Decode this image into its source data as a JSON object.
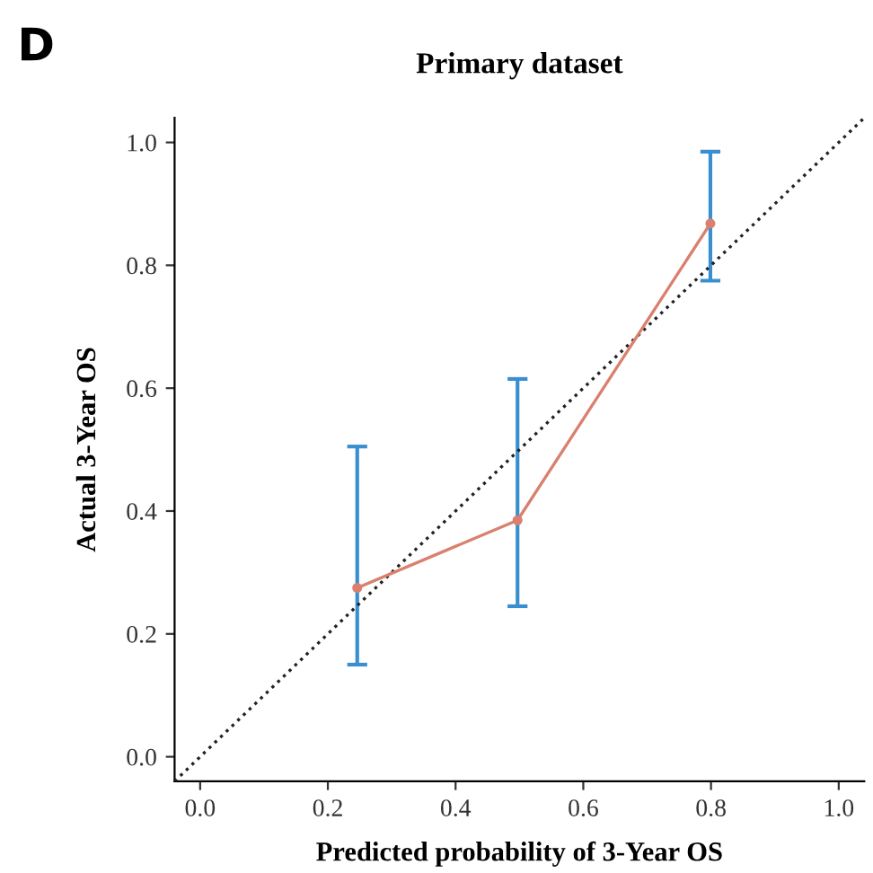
{
  "chart_data": {
    "type": "line",
    "title": "Primary dataset",
    "xlabel": "Predicted probability of 3-Year OS",
    "ylabel": "Actual 3-Year OS",
    "annotations": [
      "D"
    ],
    "series": [
      {
        "x": [
          -0.04,
          1.04
        ],
        "values": [
          -0.04,
          1.04
        ],
        "color": "#222222",
        "line_style": "dotted",
        "marker": "none"
      },
      {
        "x": [
          0.246,
          0.497,
          0.799
        ],
        "values": [
          0.275,
          0.385,
          0.868
        ],
        "errors": [
          [
            0.15,
            0.505
          ],
          [
            0.245,
            0.615
          ],
          [
            0.775,
            0.985
          ]
        ],
        "color": "#d9806e",
        "line_style": "solid",
        "marker": "circle"
      }
    ],
    "xlim": [
      -0.04,
      1.04
    ],
    "ylim": [
      -0.04,
      1.04
    ],
    "xticks": [
      {
        "value": 0,
        "label": "0.0"
      },
      0.2,
      0.4,
      0.6,
      0.8,
      {
        "value": 1,
        "label": "1.0"
      }
    ],
    "yticks": [
      {
        "value": 0,
        "label": "0.0"
      },
      0.2,
      0.4,
      0.6,
      0.8,
      {
        "value": 1,
        "label": "1.0"
      }
    ],
    "grid": false
  }
}
